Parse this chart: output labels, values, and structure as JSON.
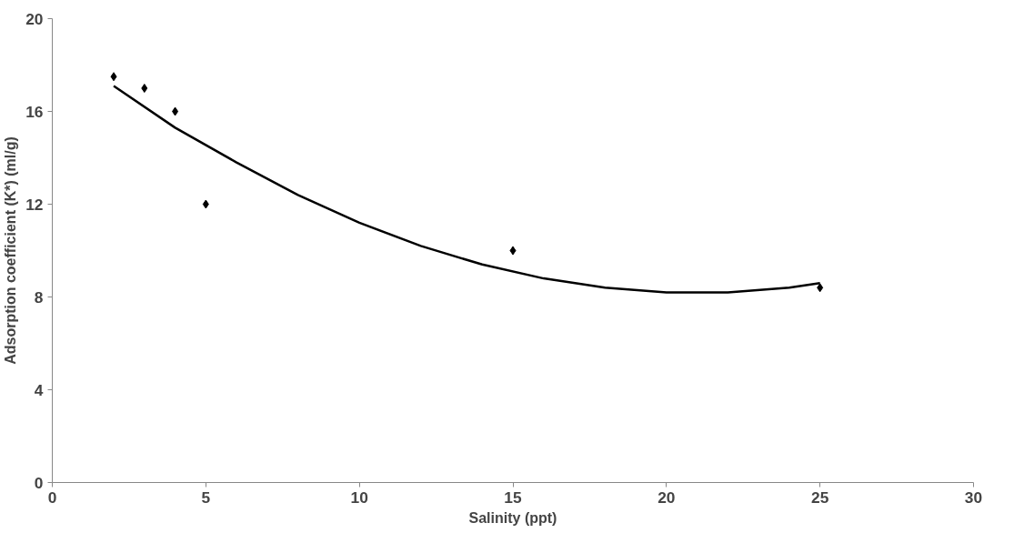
{
  "chart_data": {
    "type": "scatter",
    "xlabel": "Salinity (ppt)",
    "ylabel": "Adsorption coefficient (K*) (ml/g)",
    "xlim": [
      0,
      30
    ],
    "xticks": [
      0,
      5,
      10,
      15,
      20,
      25,
      30
    ],
    "ylim": [
      0,
      20
    ],
    "yticks": [
      0,
      4,
      8,
      12,
      16,
      20
    ],
    "grid": false,
    "marker": "diamond",
    "series": [
      {
        "color": "#000000",
        "x": [
          2,
          3,
          4,
          5,
          15,
          25
        ],
        "values": [
          17.5,
          17,
          16,
          12,
          10,
          8.4
        ]
      },
      {
        "type": "line",
        "color": "#000000",
        "marker": "none",
        "x": [
          2,
          4,
          6,
          8,
          10,
          12,
          14,
          16,
          18,
          20,
          22,
          24,
          25
        ],
        "values": [
          17.1,
          15.3,
          13.8,
          12.4,
          11.2,
          10.2,
          9.4,
          8.8,
          8.4,
          8.2,
          8.2,
          8.4,
          8.6
        ]
      }
    ]
  }
}
